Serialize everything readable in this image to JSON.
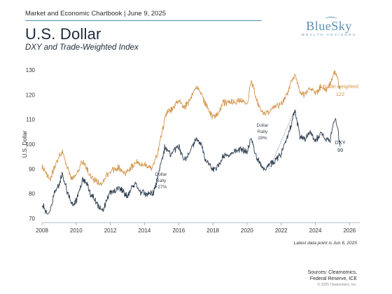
{
  "header": {
    "text": "Market and Economic Chartbook | June 9, 2025",
    "title": "U.S. Dollar",
    "subtitle": "DXY and Trade-Weighted Index"
  },
  "logo": {
    "name": "BlueSky",
    "tagline": "WEALTH ADVISORS"
  },
  "footer": {
    "note": "Latest data point is Jun 6, 2025",
    "sources_line1": "Sources: Clearnomics,",
    "sources_line2": "Federal Reserve, ICE",
    "copyright": "© 2025 Clearnomics, Inc."
  },
  "chart_data": {
    "type": "line",
    "ylabel": "U.S. Dollar",
    "xlim": [
      2008,
      2026.6
    ],
    "ylim": [
      70,
      130
    ],
    "xticks": [
      "2008",
      "2010",
      "2012",
      "2014",
      "2016",
      "2018",
      "2020",
      "2022",
      "2024",
      "2026"
    ],
    "yticks": [
      "70",
      "80",
      "90",
      "100",
      "110",
      "120",
      "130"
    ],
    "grid": false,
    "series": [
      {
        "name": "Trade-weighted",
        "color": "#d4954a",
        "end_label": "122",
        "points": [
          [
            2008.0,
            91
          ],
          [
            2008.25,
            88
          ],
          [
            2008.5,
            86
          ],
          [
            2008.75,
            91
          ],
          [
            2009.0,
            95
          ],
          [
            2009.2,
            97
          ],
          [
            2009.5,
            90
          ],
          [
            2009.75,
            86
          ],
          [
            2010.0,
            88
          ],
          [
            2010.3,
            92
          ],
          [
            2010.5,
            93
          ],
          [
            2010.75,
            88
          ],
          [
            2011.0,
            86
          ],
          [
            2011.3,
            85
          ],
          [
            2011.5,
            83
          ],
          [
            2011.75,
            87
          ],
          [
            2012.0,
            89
          ],
          [
            2012.3,
            90
          ],
          [
            2012.5,
            91
          ],
          [
            2012.75,
            88
          ],
          [
            2013.0,
            89
          ],
          [
            2013.3,
            91
          ],
          [
            2013.5,
            93
          ],
          [
            2013.75,
            92
          ],
          [
            2014.0,
            92
          ],
          [
            2014.3,
            90
          ],
          [
            2014.5,
            91
          ],
          [
            2014.75,
            96
          ],
          [
            2015.0,
            104
          ],
          [
            2015.3,
            113
          ],
          [
            2015.6,
            114
          ],
          [
            2016.0,
            118
          ],
          [
            2016.3,
            115
          ],
          [
            2016.6,
            117
          ],
          [
            2017.0,
            123
          ],
          [
            2017.3,
            121
          ],
          [
            2017.6,
            116
          ],
          [
            2018.0,
            111
          ],
          [
            2018.3,
            112
          ],
          [
            2018.6,
            117
          ],
          [
            2019.0,
            117
          ],
          [
            2019.3,
            117
          ],
          [
            2019.6,
            118
          ],
          [
            2020.0,
            116
          ],
          [
            2020.25,
            126
          ],
          [
            2020.5,
            119
          ],
          [
            2020.75,
            114
          ],
          [
            2021.0,
            112
          ],
          [
            2021.3,
            113
          ],
          [
            2021.6,
            115
          ],
          [
            2022.0,
            116
          ],
          [
            2022.3,
            120
          ],
          [
            2022.6,
            125
          ],
          [
            2022.85,
            128
          ],
          [
            2023.1,
            121
          ],
          [
            2023.4,
            120
          ],
          [
            2023.7,
            123
          ],
          [
            2024.0,
            120
          ],
          [
            2024.3,
            123
          ],
          [
            2024.6,
            122
          ],
          [
            2024.85,
            124
          ],
          [
            2025.1,
            129
          ],
          [
            2025.3,
            127
          ],
          [
            2025.45,
            122
          ]
        ]
      },
      {
        "name": "DXY",
        "color": "#2e3e50",
        "end_label": "99",
        "points": [
          [
            2008.0,
            76
          ],
          [
            2008.2,
            73
          ],
          [
            2008.45,
            72
          ],
          [
            2008.7,
            80
          ],
          [
            2009.0,
            84
          ],
          [
            2009.2,
            88
          ],
          [
            2009.5,
            80
          ],
          [
            2009.8,
            75
          ],
          [
            2010.0,
            77
          ],
          [
            2010.4,
            86
          ],
          [
            2010.6,
            85
          ],
          [
            2010.9,
            78
          ],
          [
            2011.0,
            79
          ],
          [
            2011.3,
            75
          ],
          [
            2011.6,
            74
          ],
          [
            2011.9,
            79
          ],
          [
            2012.0,
            80
          ],
          [
            2012.3,
            81
          ],
          [
            2012.5,
            83
          ],
          [
            2012.8,
            80
          ],
          [
            2013.0,
            79
          ],
          [
            2013.3,
            83
          ],
          [
            2013.5,
            84
          ],
          [
            2013.8,
            80
          ],
          [
            2014.0,
            80
          ],
          [
            2014.3,
            80
          ],
          [
            2014.5,
            80
          ],
          [
            2014.75,
            86
          ],
          [
            2015.0,
            94
          ],
          [
            2015.2,
            99
          ],
          [
            2015.5,
            96
          ],
          [
            2015.8,
            98
          ],
          [
            2016.0,
            99
          ],
          [
            2016.3,
            94
          ],
          [
            2016.6,
            96
          ],
          [
            2017.0,
            102
          ],
          [
            2017.3,
            100
          ],
          [
            2017.6,
            93
          ],
          [
            2018.0,
            90
          ],
          [
            2018.3,
            91
          ],
          [
            2018.6,
            95
          ],
          [
            2019.0,
            96
          ],
          [
            2019.3,
            97
          ],
          [
            2019.6,
            98
          ],
          [
            2020.0,
            97
          ],
          [
            2020.25,
            102
          ],
          [
            2020.5,
            96
          ],
          [
            2020.75,
            92
          ],
          [
            2021.0,
            90
          ],
          [
            2021.3,
            92
          ],
          [
            2021.6,
            93
          ],
          [
            2022.0,
            96
          ],
          [
            2022.3,
            102
          ],
          [
            2022.6,
            108
          ],
          [
            2022.8,
            114
          ],
          [
            2023.1,
            103
          ],
          [
            2023.4,
            102
          ],
          [
            2023.7,
            105
          ],
          [
            2024.0,
            101
          ],
          [
            2024.3,
            105
          ],
          [
            2024.6,
            102
          ],
          [
            2024.85,
            101
          ],
          [
            2025.05,
            108
          ],
          [
            2025.2,
            110
          ],
          [
            2025.35,
            104
          ],
          [
            2025.45,
            99
          ]
        ]
      }
    ],
    "annotations": [
      {
        "id": "rally1",
        "lines": [
          "Dollar",
          "Rally",
          "+27%"
        ],
        "from": [
          2014.5,
          80
        ],
        "to": [
          2015.2,
          99
        ]
      },
      {
        "id": "rally2",
        "lines": [
          "Dollar",
          "Rally",
          "28%"
        ],
        "from": [
          2021.3,
          90
        ],
        "to": [
          2022.8,
          114
        ]
      }
    ]
  }
}
